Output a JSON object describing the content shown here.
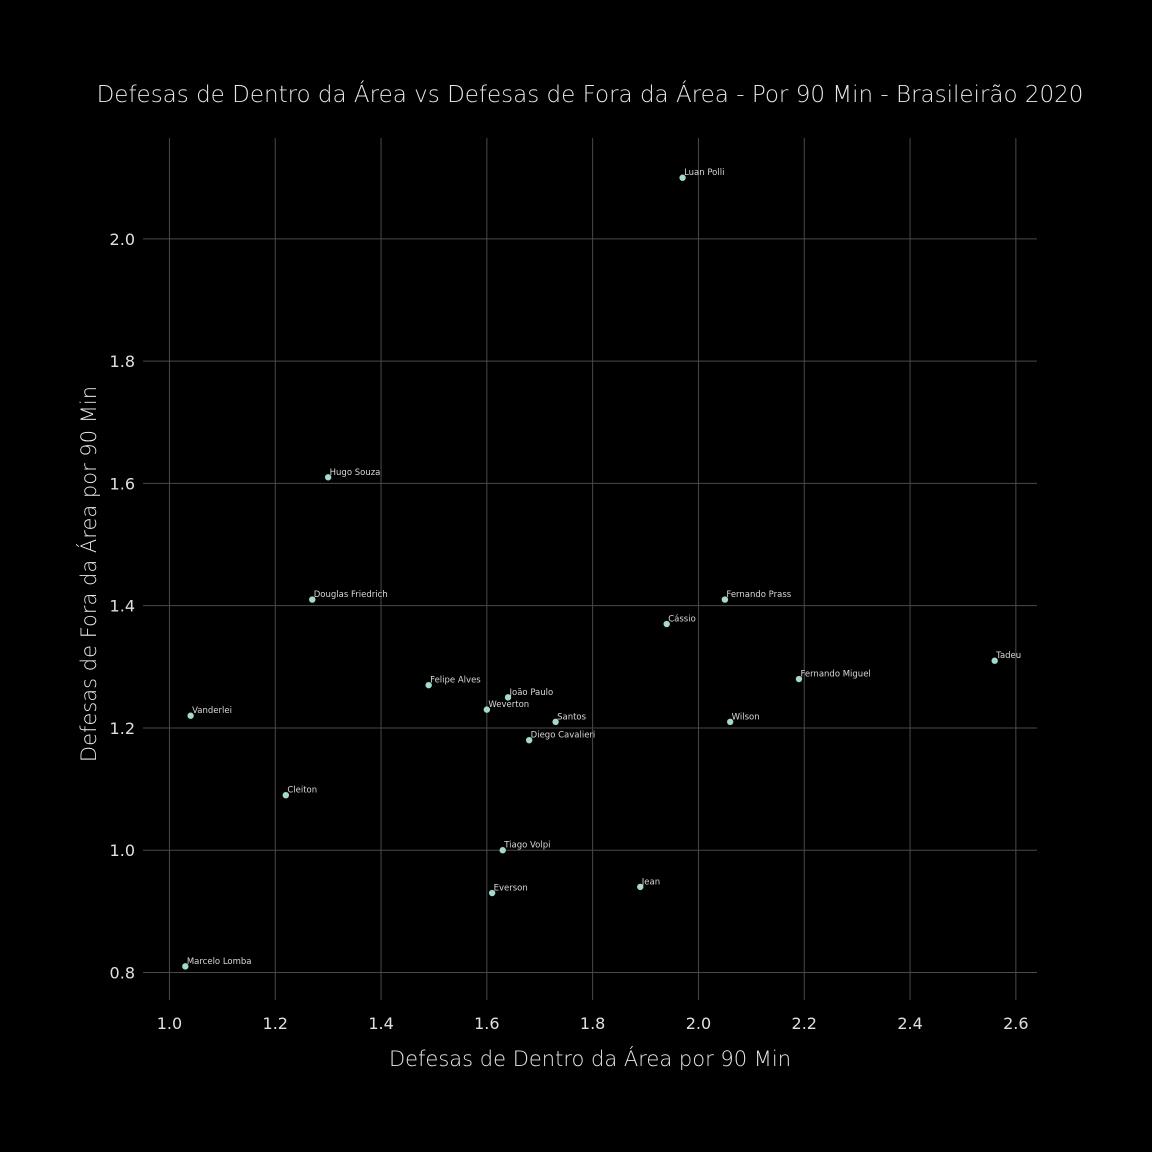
{
  "chart_data": {
    "type": "scatter",
    "title": "Defesas de Dentro da Área vs Defesas de Fora da Área - Por 90 Min - Brasileirão 2020",
    "xlabel": "Defesas de Dentro da Área por 90 Min",
    "ylabel": "Defesas de Fora da Área por 90 Min",
    "xlim": [
      0.95,
      2.64
    ],
    "ylim": [
      0.755,
      2.165
    ],
    "x_ticks": [
      1.0,
      1.2,
      1.4,
      1.6,
      1.8,
      2.0,
      2.2,
      2.4,
      2.6
    ],
    "x_tick_labels": [
      "1.0",
      "1.2",
      "1.4",
      "1.6",
      "1.8",
      "2.0",
      "2.2",
      "2.4",
      "2.6"
    ],
    "y_ticks": [
      0.8,
      1.0,
      1.2,
      1.4,
      1.6,
      1.8,
      2.0
    ],
    "y_tick_labels": [
      "0.8",
      "1.0",
      "1.2",
      "1.4",
      "1.6",
      "1.8",
      "2.0"
    ],
    "grid": true,
    "background": "#000000",
    "point_color": "#a6d8d0",
    "points": [
      {
        "label": "Luan Polli",
        "x": 1.97,
        "y": 2.1
      },
      {
        "label": "Hugo Souza",
        "x": 1.3,
        "y": 1.61
      },
      {
        "label": "Douglas Friedrich",
        "x": 1.27,
        "y": 1.41
      },
      {
        "label": "Fernando Prass",
        "x": 2.05,
        "y": 1.41
      },
      {
        "label": "Cássio",
        "x": 1.94,
        "y": 1.37
      },
      {
        "label": "Tadeu",
        "x": 2.56,
        "y": 1.31
      },
      {
        "label": "Fernando Miguel",
        "x": 2.19,
        "y": 1.28
      },
      {
        "label": "Felipe Alves",
        "x": 1.49,
        "y": 1.27
      },
      {
        "label": "João Paulo",
        "x": 1.64,
        "y": 1.25
      },
      {
        "label": "Weverton",
        "x": 1.6,
        "y": 1.23
      },
      {
        "label": "Vanderlei",
        "x": 1.04,
        "y": 1.22
      },
      {
        "label": "Santos",
        "x": 1.73,
        "y": 1.21
      },
      {
        "label": "Wilson",
        "x": 2.06,
        "y": 1.21
      },
      {
        "label": "Diego Cavalieri",
        "x": 1.68,
        "y": 1.18
      },
      {
        "label": "Cleiton",
        "x": 1.22,
        "y": 1.09
      },
      {
        "label": "Tiago Volpi",
        "x": 1.63,
        "y": 1.0
      },
      {
        "label": "Jean",
        "x": 1.89,
        "y": 0.94
      },
      {
        "label": "Everson",
        "x": 1.61,
        "y": 0.93
      },
      {
        "label": "Marcelo Lomba",
        "x": 1.03,
        "y": 0.81
      }
    ]
  }
}
